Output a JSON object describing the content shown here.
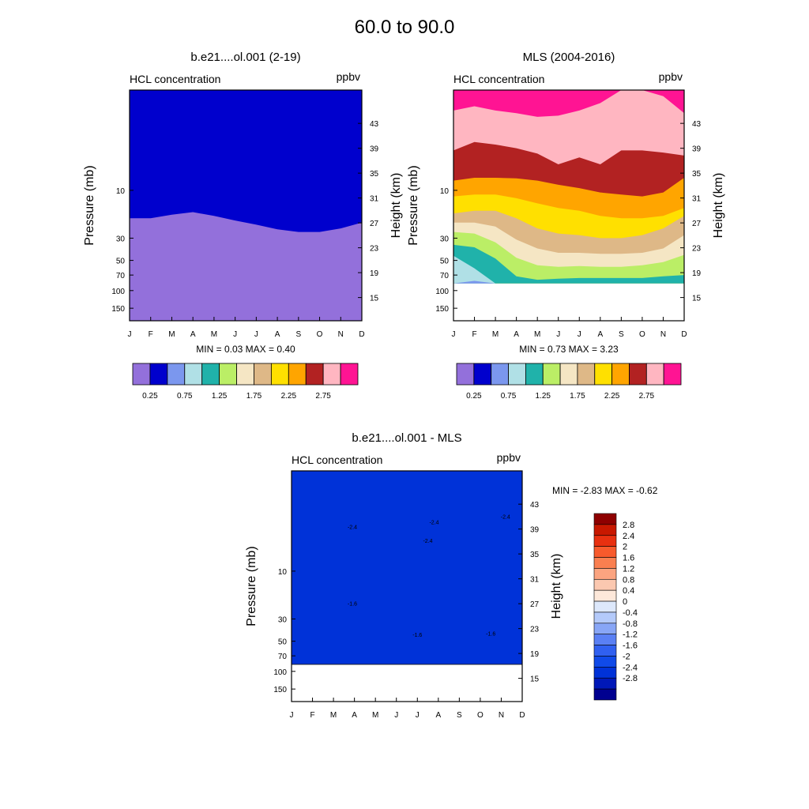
{
  "figure": {
    "title": "60.0 to  90.0"
  },
  "month_labels": [
    "J",
    "F",
    "M",
    "A",
    "M",
    "J",
    "J",
    "A",
    "S",
    "O",
    "N",
    "D"
  ],
  "pressure_ticks": [
    "10",
    "30",
    "50",
    "70",
    "100",
    "150"
  ],
  "height_ticks": [
    "43",
    "39",
    "35",
    "31",
    "27",
    "23",
    "19",
    "15"
  ],
  "colors": {
    "abs_palette": [
      "#9370db",
      "#0000cd",
      "#7b97ee",
      "#b0e0e6",
      "#20b2aa",
      "#bbee66",
      "#f5e6c4",
      "#deb887",
      "#ffe000",
      "#ffa500",
      "#b22222",
      "#ffb6c1",
      "#ff1493"
    ],
    "diff_palette": [
      "#000090",
      "#0018b8",
      "#0032d8",
      "#104ae8",
      "#3060f0",
      "#5a80f4",
      "#88a6f6",
      "#b4cafa",
      "#dde8fb",
      "#fde8da",
      "#fbc8b0",
      "#fba480",
      "#fa7f50",
      "#f85a2c",
      "#e83010",
      "#c81800",
      "#8e0000"
    ]
  },
  "chart_data": [
    {
      "type": "contour",
      "title": "b.e21....ol.001 (2-19)",
      "left_label": "HCL concentration",
      "right_label": "ppbv",
      "ylabel": "Pressure (mb)",
      "ylabel_right": "Height (km)",
      "stats": "MIN =   0.03  MAX =   0.40",
      "x": [
        "J",
        "F",
        "M",
        "A",
        "M",
        "J",
        "J",
        "A",
        "S",
        "O",
        "N",
        "D"
      ],
      "log_pressure_axis": true,
      "ylim_mb": [
        200,
        1
      ],
      "region_tops": [
        {
          "level": 0,
          "pressure_mb": [
            19,
            19,
            17.5,
            16.5,
            18,
            20,
            22,
            24.5,
            26,
            26,
            24,
            21
          ]
        },
        {
          "level": 1,
          "pressure_mb": [
            1,
            1,
            1,
            1,
            1,
            1,
            1,
            1,
            1,
            1,
            1,
            1
          ]
        }
      ],
      "colorbar": {
        "levels": [
          0.25,
          0.5,
          0.75,
          1,
          1.25,
          1.5,
          1.75,
          2,
          2.25,
          2.5,
          2.75,
          3
        ],
        "labels": [
          "0.25",
          "0.75",
          "1.25",
          "1.75",
          "2.25",
          "2.75"
        ]
      }
    },
    {
      "type": "contour",
      "title": "MLS (2004-2016)",
      "left_label": "HCL concentration",
      "right_label": "ppbv",
      "ylabel": "Pressure (mb)",
      "ylabel_right": "Height (km)",
      "stats": "MIN =   0.73  MAX =   3.23",
      "x": [
        "J",
        "F",
        "M",
        "A",
        "M",
        "J",
        "J",
        "A",
        "S",
        "O",
        "N",
        "D"
      ],
      "log_pressure_axis": true,
      "ylim_mb": [
        200,
        1
      ],
      "data_bottom_mb": 85,
      "region_tops": [
        {
          "level": 2,
          "pressure_mb": [
            85,
            80,
            85,
            85,
            85,
            85,
            85,
            85,
            85,
            85,
            85,
            85
          ]
        },
        {
          "level": 3,
          "pressure_mb": [
            45,
            60,
            85,
            85,
            85,
            85,
            85,
            85,
            85,
            85,
            85,
            85
          ]
        },
        {
          "level": 4,
          "pressure_mb": [
            35,
            37,
            48,
            72,
            78,
            76,
            75,
            75,
            75,
            75,
            72,
            70
          ]
        },
        {
          "level": 5,
          "pressure_mb": [
            26,
            27,
            33,
            47,
            56,
            58,
            57,
            58,
            58,
            56,
            52,
            44
          ]
        },
        {
          "level": 6,
          "pressure_mb": [
            21,
            21,
            23,
            31,
            38,
            42,
            42,
            43,
            43,
            42,
            38,
            28
          ]
        },
        {
          "level": 7,
          "pressure_mb": [
            17,
            16,
            16,
            19,
            24,
            27,
            28,
            30,
            30,
            28,
            24,
            18
          ]
        },
        {
          "level": 8,
          "pressure_mb": [
            11.5,
            11,
            11,
            12,
            13.5,
            15,
            16,
            18,
            19,
            19,
            18,
            15
          ]
        },
        {
          "level": 9,
          "pressure_mb": [
            8,
            7.5,
            7.5,
            7.6,
            8,
            8.8,
            9.5,
            10.5,
            11,
            11.5,
            10.5,
            7.5
          ]
        },
        {
          "level": 10,
          "pressure_mb": [
            4,
            3.3,
            3.5,
            3.8,
            4.3,
            5.5,
            4.7,
            5.5,
            4,
            4,
            4.2,
            4.5
          ]
        },
        {
          "level": 11,
          "pressure_mb": [
            1.6,
            1.45,
            1.6,
            1.7,
            1.85,
            1.8,
            1.6,
            1.35,
            1,
            1,
            1.15,
            1.7
          ]
        },
        {
          "level": 12,
          "pressure_mb": [
            1,
            1,
            1,
            1,
            1,
            1,
            1,
            1,
            1,
            1,
            1,
            1
          ]
        }
      ],
      "colorbar": {
        "levels": [
          0.25,
          0.5,
          0.75,
          1,
          1.25,
          1.5,
          1.75,
          2,
          2.25,
          2.5,
          2.75,
          3
        ],
        "labels": [
          "0.25",
          "0.75",
          "1.25",
          "1.75",
          "2.25",
          "2.75"
        ]
      }
    },
    {
      "type": "contour",
      "title": "b.e21....ol.001 - MLS",
      "left_label": "HCL concentration",
      "right_label": "ppbv",
      "ylabel": "Pressure (mb)",
      "ylabel_right": "Height (km)",
      "stats": "MIN =  -2.83  MAX =  -0.62",
      "x": [
        "J",
        "F",
        "M",
        "A",
        "M",
        "J",
        "J",
        "A",
        "S",
        "O",
        "N",
        "D"
      ],
      "log_pressure_axis": true,
      "ylim_mb": [
        200,
        1
      ],
      "data_bottom_mb": 85,
      "region_tops": [
        {
          "level": 7,
          "pressure_mb": [
            55,
            70,
            85,
            85,
            85,
            85,
            85,
            85,
            85,
            85,
            85,
            85
          ]
        },
        {
          "level": 6,
          "pressure_mb": [
            33,
            40,
            62,
            80,
            82,
            82,
            82,
            82,
            82,
            82,
            80,
            52
          ]
        },
        {
          "level": 5,
          "pressure_mb": [
            22,
            25,
            31,
            45,
            50,
            50,
            50,
            50,
            50,
            48,
            48,
            30
          ]
        },
        {
          "level": 4,
          "pressure_mb": [
            13,
            13.5,
            14,
            15,
            16.5,
            18,
            20,
            21,
            21,
            20.5,
            19,
            14
          ]
        },
        {
          "level": 3,
          "pressure_mb": [
            4,
            3.6,
            3.5,
            3.6,
            4.2,
            5.3,
            4.8,
            5.4,
            3.2,
            3.1,
            3.4,
            4.5
          ]
        },
        {
          "level": 2,
          "pressure_mb": [
            1,
            1,
            1,
            1,
            1,
            1,
            1,
            1,
            1,
            1,
            1,
            1
          ]
        }
      ],
      "contour_labels": [
        {
          "text": "-2.4",
          "month": 2.9,
          "pressure_mb": 3.8
        },
        {
          "text": "-2.4",
          "month": 6.8,
          "pressure_mb": 3.4
        },
        {
          "text": "-2.4",
          "month": 6.5,
          "pressure_mb": 5.2
        },
        {
          "text": "-2.4",
          "month": 10.2,
          "pressure_mb": 3.0
        },
        {
          "text": "-1.6",
          "month": 2.9,
          "pressure_mb": 22
        },
        {
          "text": "-1.6",
          "month": 6.0,
          "pressure_mb": 45
        },
        {
          "text": "-1.6",
          "month": 9.5,
          "pressure_mb": 44
        }
      ],
      "colorbar": {
        "levels": [
          -2.8,
          -2.4,
          -2,
          -1.6,
          -1.2,
          -0.8,
          -0.4,
          0,
          0.4,
          0.8,
          1.2,
          1.6,
          2,
          2.4,
          2.8
        ],
        "labels": [
          "2.8",
          "2.4",
          "2",
          "1.6",
          "1.2",
          "0.8",
          "0.4",
          "0",
          "-0.4",
          "-0.8",
          "-1.2",
          "-1.6",
          "-2",
          "-2.4",
          "-2.8"
        ]
      }
    }
  ]
}
